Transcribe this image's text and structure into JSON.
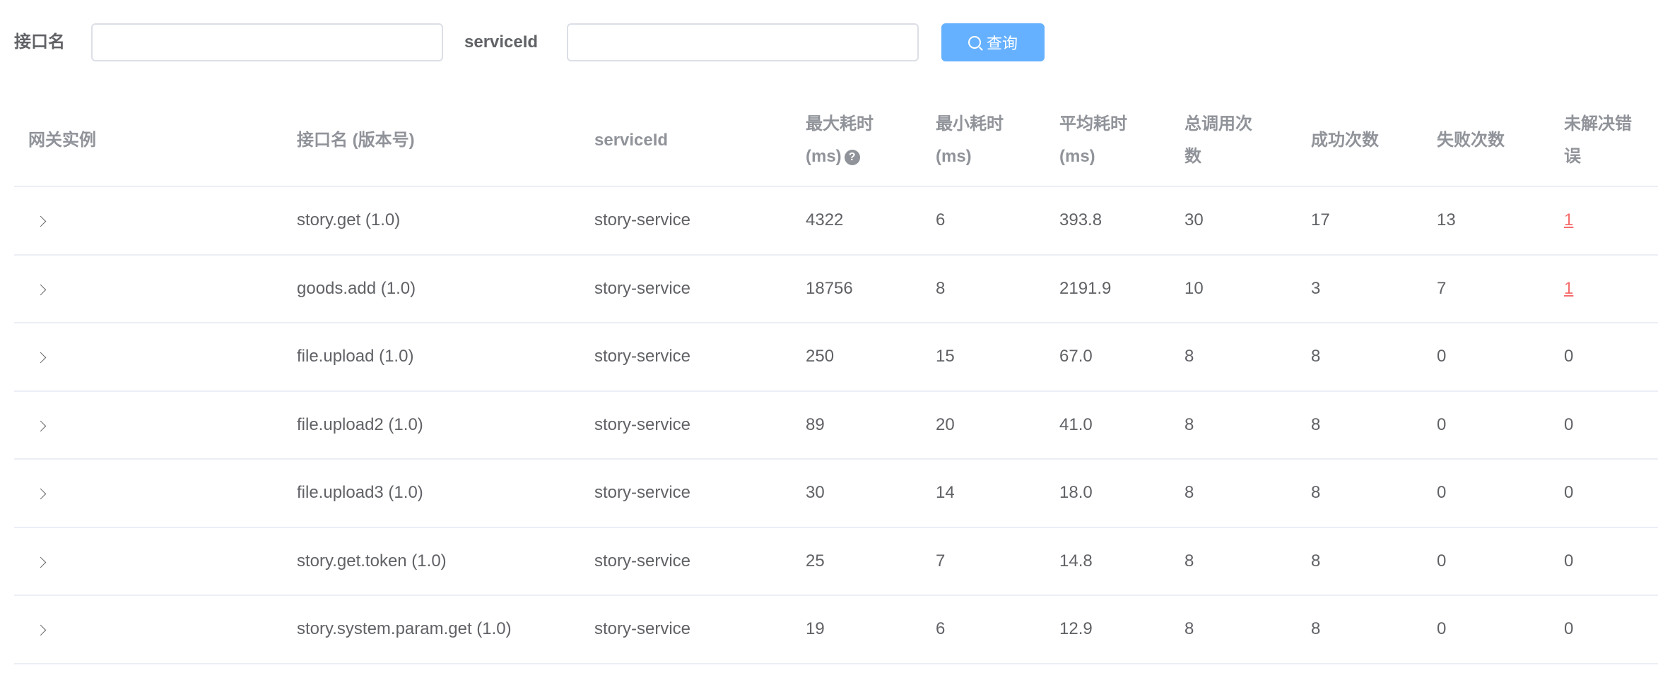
{
  "search": {
    "name_label": "接口名",
    "name_value": "",
    "service_label": "serviceId",
    "service_value": "",
    "query_button": "查询",
    "query_icon": "search-icon",
    "button_color": "#66b1ff"
  },
  "table": {
    "headers": {
      "instance": "网关实例",
      "name": "接口名 (版本号)",
      "service": "serviceId",
      "max": "最大耗时",
      "max_unit": "(ms)",
      "min": "最小耗时",
      "min_unit": "(ms)",
      "avg": "平均耗时",
      "avg_unit": "(ms)",
      "total_a": "总调用次",
      "total_b": "数",
      "success": "成功次数",
      "fail": "失败次数",
      "unresolved_a": "未解决错",
      "unresolved_b": "误"
    },
    "error_link_color": "#f56c6c",
    "rows": [
      {
        "name": "story.get (1.0)",
        "service": "story-service",
        "max": "4322",
        "min": "6",
        "avg": "393.8",
        "total": "30",
        "success": "17",
        "fail": "13",
        "unresolved": "1",
        "unresolved_link": true
      },
      {
        "name": "goods.add (1.0)",
        "service": "story-service",
        "max": "18756",
        "min": "8",
        "avg": "2191.9",
        "total": "10",
        "success": "3",
        "fail": "7",
        "unresolved": "1",
        "unresolved_link": true
      },
      {
        "name": "file.upload (1.0)",
        "service": "story-service",
        "max": "250",
        "min": "15",
        "avg": "67.0",
        "total": "8",
        "success": "8",
        "fail": "0",
        "unresolved": "0",
        "unresolved_link": false
      },
      {
        "name": "file.upload2 (1.0)",
        "service": "story-service",
        "max": "89",
        "min": "20",
        "avg": "41.0",
        "total": "8",
        "success": "8",
        "fail": "0",
        "unresolved": "0",
        "unresolved_link": false
      },
      {
        "name": "file.upload3 (1.0)",
        "service": "story-service",
        "max": "30",
        "min": "14",
        "avg": "18.0",
        "total": "8",
        "success": "8",
        "fail": "0",
        "unresolved": "0",
        "unresolved_link": false
      },
      {
        "name": "story.get.token (1.0)",
        "service": "story-service",
        "max": "25",
        "min": "7",
        "avg": "14.8",
        "total": "8",
        "success": "8",
        "fail": "0",
        "unresolved": "0",
        "unresolved_link": false
      },
      {
        "name": "story.system.param.get (1.0)",
        "service": "story-service",
        "max": "19",
        "min": "6",
        "avg": "12.9",
        "total": "8",
        "success": "8",
        "fail": "0",
        "unresolved": "0",
        "unresolved_link": false
      }
    ]
  }
}
